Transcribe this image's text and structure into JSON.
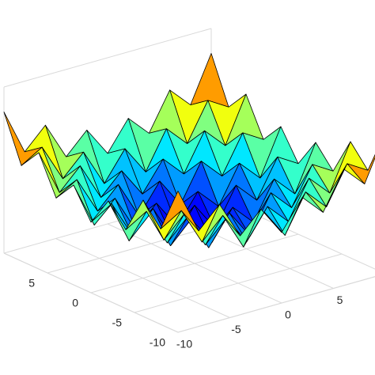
{
  "chart_data": {
    "type": "surface",
    "x": [
      -10,
      -8,
      -6,
      -4,
      -2,
      0,
      2,
      4,
      6,
      8,
      10
    ],
    "y": [
      -10,
      -8,
      -6,
      -4,
      -2,
      0,
      2,
      4,
      6,
      8,
      10
    ],
    "z": [
      [
        34,
        23,
        28,
        19,
        24,
        17,
        24,
        19,
        28,
        23,
        34
      ],
      [
        23,
        26,
        17,
        22,
        13,
        20,
        13,
        22,
        17,
        26,
        23
      ],
      [
        28,
        17,
        22,
        13,
        18,
        11,
        18,
        13,
        22,
        17,
        28
      ],
      [
        19,
        22,
        13,
        18,
        9,
        16,
        9,
        18,
        13,
        22,
        19
      ],
      [
        24,
        13,
        18,
        9,
        14,
        7,
        14,
        9,
        18,
        13,
        24
      ],
      [
        17,
        20,
        11,
        16,
        7,
        14,
        7,
        16,
        11,
        20,
        17
      ],
      [
        24,
        13,
        18,
        9,
        14,
        7,
        14,
        9,
        18,
        13,
        24
      ],
      [
        19,
        22,
        13,
        18,
        9,
        16,
        9,
        18,
        13,
        22,
        19
      ],
      [
        28,
        17,
        22,
        13,
        18,
        11,
        18,
        13,
        22,
        17,
        28
      ],
      [
        23,
        26,
        17,
        22,
        13,
        20,
        13,
        22,
        17,
        26,
        23
      ],
      [
        34,
        23,
        28,
        19,
        24,
        17,
        24,
        19,
        28,
        23,
        34
      ]
    ],
    "xlim": [
      -10,
      10
    ],
    "ylim": [
      -10,
      10
    ],
    "zlim": [
      0,
      40
    ],
    "xticks": [
      -10,
      -5,
      0,
      5
    ],
    "yticks": [
      -10,
      -5,
      0,
      5
    ],
    "colormap": "jet"
  }
}
